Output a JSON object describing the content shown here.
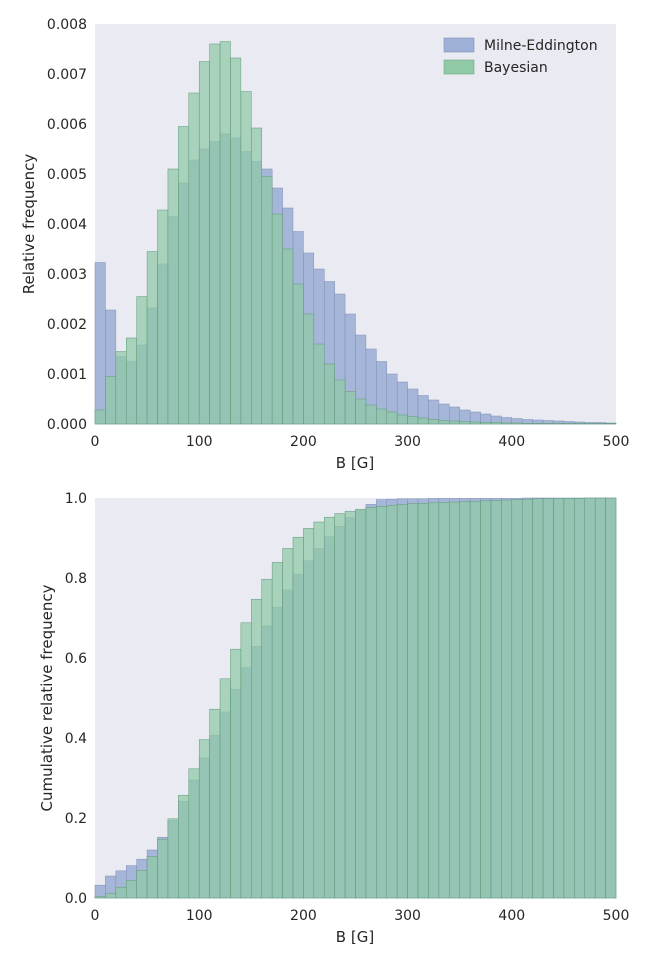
{
  "chart_data": [
    {
      "type": "bar",
      "subtype": "histogram-overlay",
      "title": "",
      "xlabel": "B [G]",
      "ylabel": "Relative frequency",
      "xlim": [
        0,
        500
      ],
      "ylim": [
        0,
        0.008
      ],
      "bin_width": 10,
      "x_ticks": [
        "0",
        "100",
        "200",
        "300",
        "400",
        "500"
      ],
      "y_ticks": [
        "0.000",
        "0.001",
        "0.002",
        "0.003",
        "0.004",
        "0.005",
        "0.006",
        "0.007",
        "0.008"
      ],
      "grid": false,
      "legend": "top-right",
      "bin_left_edges": [
        0,
        10,
        20,
        30,
        40,
        50,
        60,
        70,
        80,
        90,
        100,
        110,
        120,
        130,
        140,
        150,
        160,
        170,
        180,
        190,
        200,
        210,
        220,
        230,
        240,
        250,
        260,
        270,
        280,
        290,
        300,
        310,
        320,
        330,
        340,
        350,
        360,
        370,
        380,
        390,
        400,
        410,
        420,
        430,
        440,
        450,
        460,
        470,
        480,
        490
      ],
      "series": [
        {
          "name": "Milne-Eddington",
          "color": "#9fb0d6",
          "values": [
            0.00323,
            0.00228,
            0.00135,
            0.00125,
            0.00158,
            0.00232,
            0.0032,
            0.00415,
            0.00482,
            0.00528,
            0.0055,
            0.00565,
            0.0058,
            0.00572,
            0.00545,
            0.00525,
            0.0051,
            0.00472,
            0.00432,
            0.00385,
            0.00342,
            0.0031,
            0.00285,
            0.0026,
            0.0022,
            0.00178,
            0.0015,
            0.00125,
            0.001,
            0.00084,
            0.0007,
            0.00057,
            0.00048,
            0.0004,
            0.00034,
            0.00028,
            0.00024,
            0.0002,
            0.00016,
            0.00013,
            0.00011,
            9e-05,
            8e-05,
            7e-05,
            6e-05,
            5e-05,
            4e-05,
            3e-05,
            3e-05,
            2e-05
          ]
        },
        {
          "name": "Bayesian",
          "color": "#8fc9a5",
          "values": [
            0.00028,
            0.00095,
            0.00145,
            0.00172,
            0.00255,
            0.00345,
            0.00428,
            0.0051,
            0.00595,
            0.00662,
            0.00725,
            0.0076,
            0.00765,
            0.00732,
            0.00665,
            0.00592,
            0.00495,
            0.0042,
            0.0035,
            0.0028,
            0.0022,
            0.0016,
            0.0012,
            0.00088,
            0.00065,
            0.0005,
            0.00038,
            0.0003,
            0.00024,
            0.00018,
            0.00015,
            0.00012,
            9e-05,
            7e-05,
            6e-05,
            5e-05,
            4e-05,
            3e-05,
            3e-05,
            2e-05,
            2e-05,
            1e-05,
            1e-05,
            1e-05,
            1e-05,
            1e-05,
            1e-05,
            1e-05,
            1e-05,
            1e-05
          ]
        }
      ]
    },
    {
      "type": "bar",
      "subtype": "cumulative-histogram-overlay",
      "title": "",
      "xlabel": "B [G]",
      "ylabel": "Cumulative relative frequency",
      "xlim": [
        0,
        500
      ],
      "ylim": [
        0,
        1.0
      ],
      "bin_width": 10,
      "x_ticks": [
        "0",
        "100",
        "200",
        "300",
        "400",
        "500"
      ],
      "y_ticks": [
        "0.0",
        "0.2",
        "0.4",
        "0.6",
        "0.8",
        "1.0"
      ],
      "grid": false,
      "bin_left_edges": [
        0,
        10,
        20,
        30,
        40,
        50,
        60,
        70,
        80,
        90,
        100,
        110,
        120,
        130,
        140,
        150,
        160,
        170,
        180,
        190,
        200,
        210,
        220,
        230,
        240,
        250,
        260,
        270,
        280,
        290,
        300,
        310,
        320,
        330,
        340,
        350,
        360,
        370,
        380,
        390,
        400,
        410,
        420,
        430,
        440,
        450,
        460,
        470,
        480,
        490
      ],
      "series": [
        {
          "name": "Milne-Eddington",
          "color": "#9fb0d6",
          "values": [
            0.032,
            0.055,
            0.068,
            0.081,
            0.097,
            0.12,
            0.152,
            0.194,
            0.242,
            0.295,
            0.35,
            0.407,
            0.465,
            0.522,
            0.576,
            0.629,
            0.68,
            0.727,
            0.77,
            0.809,
            0.843,
            0.874,
            0.903,
            0.929,
            0.951,
            0.969,
            0.984,
            0.996,
            0.997,
            0.998,
            0.998,
            0.998,
            0.999,
            0.999,
            0.999,
            0.999,
            0.999,
            0.999,
            0.999,
            0.999,
            0.999,
            1.0,
            1.0,
            1.0,
            1.0,
            1.0,
            1.0,
            1.0,
            1.0,
            1.0
          ]
        },
        {
          "name": "Bayesian",
          "color": "#8fc9a5",
          "values": [
            0.003,
            0.012,
            0.027,
            0.044,
            0.069,
            0.104,
            0.147,
            0.198,
            0.257,
            0.323,
            0.396,
            0.472,
            0.548,
            0.622,
            0.688,
            0.747,
            0.797,
            0.839,
            0.874,
            0.902,
            0.924,
            0.94,
            0.952,
            0.961,
            0.967,
            0.972,
            0.976,
            0.979,
            0.982,
            0.984,
            0.986,
            0.987,
            0.988,
            0.989,
            0.99,
            0.991,
            0.992,
            0.993,
            0.994,
            0.995,
            0.996,
            0.997,
            0.998,
            0.998,
            0.999,
            0.999,
            0.999,
            1.0,
            1.0,
            1.0
          ]
        }
      ]
    }
  ]
}
